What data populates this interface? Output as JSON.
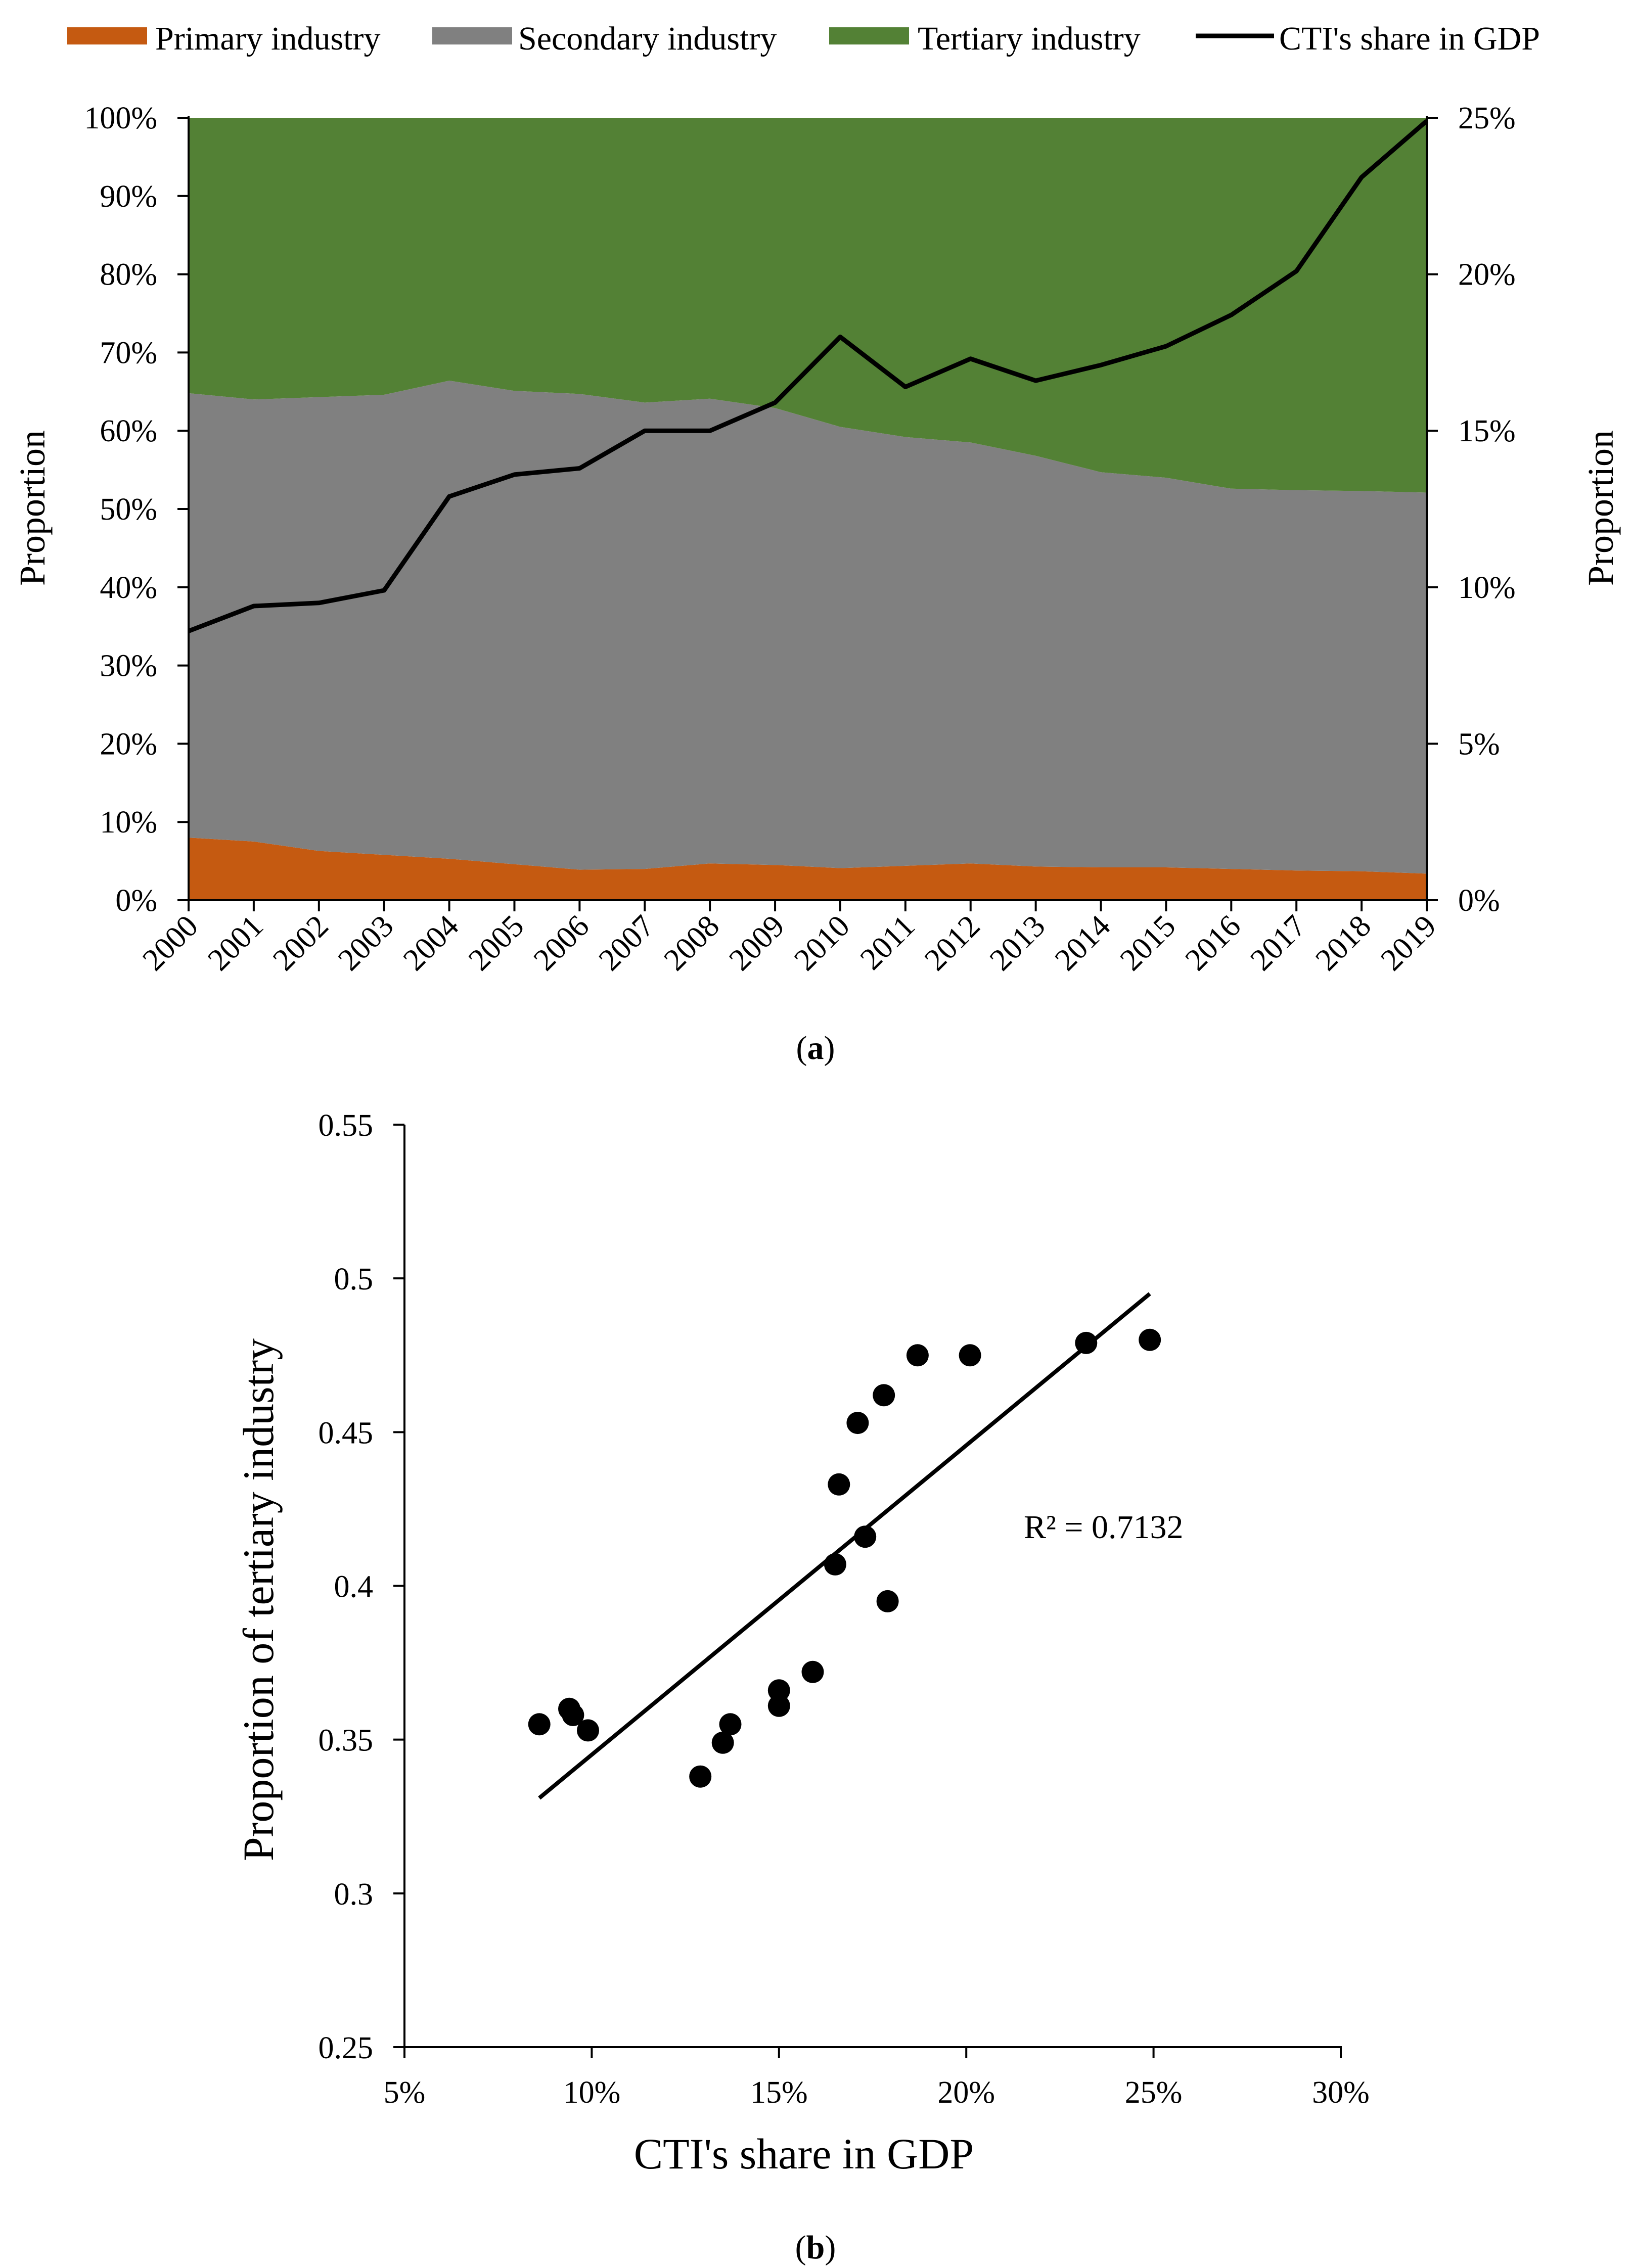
{
  "chart_data": [
    {
      "panel": "(a)",
      "panel_letter": "a",
      "type": "area",
      "stacked": true,
      "categories": [
        "2000",
        "2001",
        "2002",
        "2003",
        "2004",
        "2005",
        "2006",
        "2007",
        "2008",
        "2009",
        "2010",
        "2011",
        "2012",
        "2013",
        "2014",
        "2015",
        "2016",
        "2017",
        "2018",
        "2019"
      ],
      "series": [
        {
          "name": "Primary industry",
          "color": "#c55a11",
          "values": [
            0.08,
            0.075,
            0.063,
            0.058,
            0.053,
            0.046,
            0.039,
            0.04,
            0.047,
            0.045,
            0.041,
            0.044,
            0.047,
            0.043,
            0.042,
            0.042,
            0.04,
            0.038,
            0.037,
            0.034
          ]
        },
        {
          "name": "Secondary industry",
          "color": "#808080",
          "values": [
            0.568,
            0.565,
            0.58,
            0.588,
            0.611,
            0.605,
            0.608,
            0.596,
            0.594,
            0.584,
            0.564,
            0.548,
            0.538,
            0.525,
            0.505,
            0.498,
            0.486,
            0.486,
            0.486,
            0.487
          ]
        },
        {
          "name": "Tertiary industry",
          "color": "#538135",
          "values": [
            0.352,
            0.36,
            0.357,
            0.354,
            0.336,
            0.349,
            0.353,
            0.364,
            0.359,
            0.371,
            0.395,
            0.408,
            0.415,
            0.432,
            0.453,
            0.46,
            0.474,
            0.476,
            0.477,
            0.479
          ]
        }
      ],
      "line": {
        "name": "CTI's share in GDP",
        "color": "#000000",
        "axis": "right",
        "values": [
          0.086,
          0.094,
          0.095,
          0.099,
          0.129,
          0.136,
          0.138,
          0.15,
          0.15,
          0.159,
          0.18,
          0.164,
          0.173,
          0.166,
          0.171,
          0.177,
          0.187,
          0.201,
          0.231,
          0.249
        ]
      },
      "xlabel": "",
      "ylabel_left": "Proportion",
      "ylabel_right": "Proportion",
      "ylim_left": [
        0,
        1
      ],
      "ylim_right": [
        0,
        0.25
      ],
      "yticks_left": [
        "0%",
        "10%",
        "20%",
        "30%",
        "40%",
        "50%",
        "60%",
        "70%",
        "80%",
        "90%",
        "100%"
      ],
      "yticks_right": [
        "0%",
        "5%",
        "10%",
        "15%",
        "20%",
        "25%"
      ],
      "legend": [
        "Primary industry",
        "Secondary industry",
        "Tertiary industry",
        "CTI's share in GDP"
      ],
      "legend_position": "top",
      "grid": false
    },
    {
      "panel": "(b)",
      "panel_letter": "b",
      "type": "scatter",
      "points": [
        {
          "x": 0.086,
          "y": 0.355
        },
        {
          "x": 0.094,
          "y": 0.36
        },
        {
          "x": 0.095,
          "y": 0.358
        },
        {
          "x": 0.099,
          "y": 0.353
        },
        {
          "x": 0.129,
          "y": 0.338
        },
        {
          "x": 0.135,
          "y": 0.349
        },
        {
          "x": 0.137,
          "y": 0.355
        },
        {
          "x": 0.15,
          "y": 0.361
        },
        {
          "x": 0.15,
          "y": 0.366
        },
        {
          "x": 0.159,
          "y": 0.372
        },
        {
          "x": 0.165,
          "y": 0.407
        },
        {
          "x": 0.166,
          "y": 0.433
        },
        {
          "x": 0.171,
          "y": 0.453
        },
        {
          "x": 0.173,
          "y": 0.416
        },
        {
          "x": 0.178,
          "y": 0.462
        },
        {
          "x": 0.179,
          "y": 0.395
        },
        {
          "x": 0.187,
          "y": 0.475
        },
        {
          "x": 0.201,
          "y": 0.475
        },
        {
          "x": 0.232,
          "y": 0.479
        },
        {
          "x": 0.249,
          "y": 0.48
        }
      ],
      "trendline": {
        "x": [
          0.086,
          0.249
        ],
        "y": [
          0.331,
          0.495
        ]
      },
      "annotation": "R² = 0.7132",
      "xlabel": "CTI's share in GDP",
      "ylabel": "Proportion of tertiary industry",
      "xlim": [
        0.05,
        0.3
      ],
      "ylim": [
        0.25,
        0.55
      ],
      "xticks": [
        "5%",
        "10%",
        "15%",
        "20%",
        "25%",
        "30%"
      ],
      "yticks": [
        "0.25",
        "0.3",
        "0.35",
        "0.4",
        "0.45",
        "0.5",
        "0.55"
      ],
      "grid": false
    }
  ]
}
